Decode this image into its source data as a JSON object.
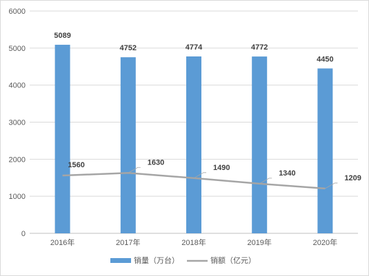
{
  "chart_data": {
    "type": "bar",
    "categories": [
      "2016年",
      "2017年",
      "2018年",
      "2019年",
      "2020年"
    ],
    "ylim": [
      0,
      6000
    ],
    "yticks": [
      0,
      1000,
      2000,
      3000,
      4000,
      5000,
      6000
    ],
    "grid": true,
    "legend_position": "bottom",
    "series": [
      {
        "name": "销量（万台）",
        "type": "bar",
        "color": "#5B9BD5",
        "values": [
          5089,
          4752,
          4774,
          4772,
          4450
        ]
      },
      {
        "name": "销额（亿元）",
        "type": "line",
        "color": "#A5A5A5",
        "values": [
          1560,
          1630,
          1490,
          1340,
          1209
        ]
      }
    ]
  }
}
